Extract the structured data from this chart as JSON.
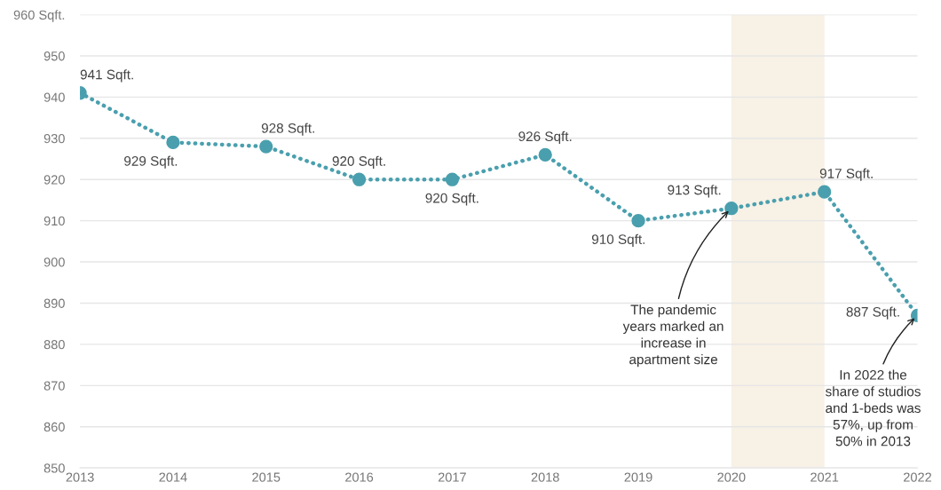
{
  "chart_data": {
    "type": "line",
    "x": [
      2013,
      2014,
      2015,
      2016,
      2017,
      2018,
      2019,
      2020,
      2021,
      2022
    ],
    "series": [
      {
        "color": "#4a9fae",
        "values": [
          941,
          929,
          928,
          920,
          920,
          926,
          910,
          913,
          917,
          887
        ],
        "value_labels": [
          "941 Sqft.",
          "929 Sqft.",
          "928 Sqft.",
          "920 Sqft.",
          "920 Sqft.",
          "926 Sqft.",
          "910 Sqft.",
          "913 Sqft.",
          "917 Sqft.",
          "887 Sqft."
        ]
      }
    ],
    "xlim": [
      2013,
      2022
    ],
    "xticks": [
      2013,
      2014,
      2015,
      2016,
      2017,
      2018,
      2019,
      2020,
      2021,
      2022
    ],
    "ylim": [
      850,
      960
    ],
    "yticks": [
      850,
      860,
      870,
      880,
      890,
      900,
      910,
      920,
      930,
      940,
      950,
      {
        "value": 960,
        "label": "960 Sqft."
      }
    ],
    "grid": "y",
    "marker": "circle",
    "line_style": "dotted",
    "bands": [
      {
        "axis": "x",
        "from": 2020,
        "to": 2021,
        "color": "#f7f1e6"
      }
    ],
    "annotations": [
      {
        "text": "The pandemic\nyears marked an\nincrease in\napartment size",
        "x": 2020,
        "y": 913
      },
      {
        "text": "In 2022 the\nshare of studios\nand 1-beds was\n57%, up from\n50% in 2013",
        "x": 2022,
        "y": 887
      }
    ]
  }
}
